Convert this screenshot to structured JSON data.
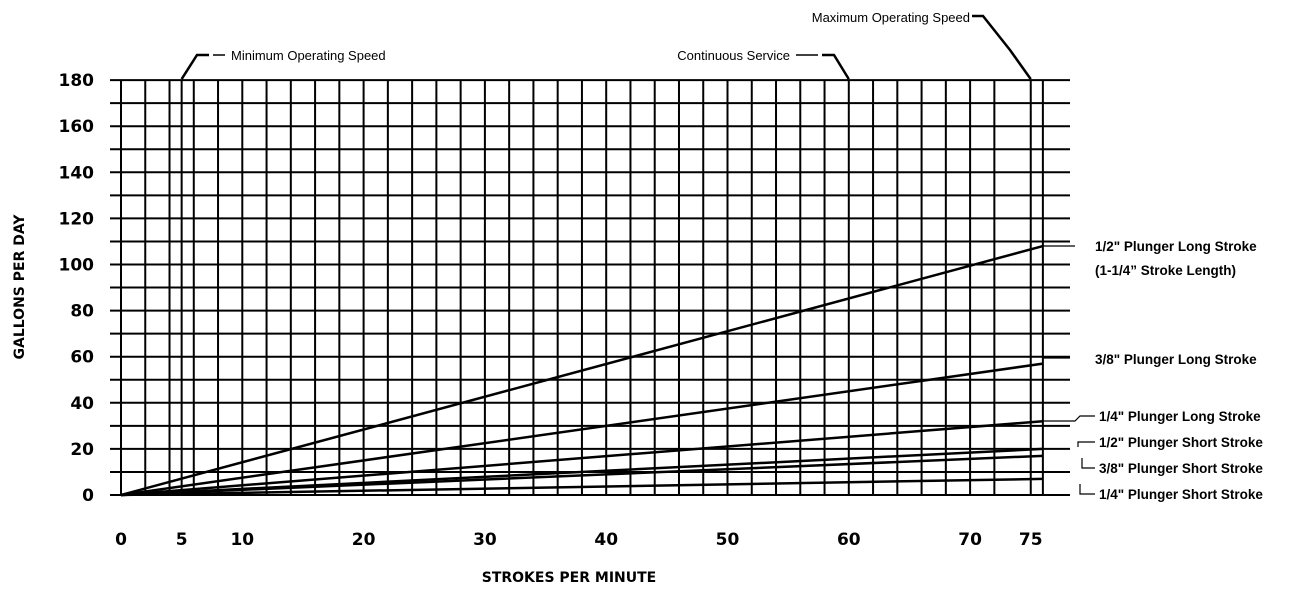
{
  "chart_data": {
    "type": "line",
    "title": "",
    "xlabel": "STROKES PER MINUTE",
    "ylabel": "GALLONS PER DAY",
    "xlim": [
      0,
      76
    ],
    "ylim": [
      0,
      180
    ],
    "x_ticks": [
      {
        "value": 0,
        "label": "0"
      },
      {
        "value": 5,
        "label": "5"
      },
      {
        "value": 10,
        "label": "10"
      },
      {
        "value": 20,
        "label": "20"
      },
      {
        "value": 30,
        "label": "30"
      },
      {
        "value": 40,
        "label": "40"
      },
      {
        "value": 50,
        "label": "50"
      },
      {
        "value": 60,
        "label": "60"
      },
      {
        "value": 70,
        "label": "70"
      },
      {
        "value": 75,
        "label": "75"
      }
    ],
    "y_ticks": [
      {
        "value": 0,
        "label": "0"
      },
      {
        "value": 20,
        "label": "20"
      },
      {
        "value": 40,
        "label": "40"
      },
      {
        "value": 60,
        "label": "60"
      },
      {
        "value": 80,
        "label": "80"
      },
      {
        "value": 100,
        "label": "100"
      },
      {
        "value": 120,
        "label": "120"
      },
      {
        "value": 140,
        "label": "140"
      },
      {
        "value": 160,
        "label": "160"
      },
      {
        "value": 180,
        "label": "180"
      }
    ],
    "grid": true,
    "grid_x_values": [
      0,
      2,
      4,
      5,
      6,
      8,
      10,
      12,
      14,
      16,
      18,
      20,
      22,
      24,
      26,
      28,
      30,
      32,
      34,
      36,
      38,
      40,
      42,
      44,
      46,
      48,
      50,
      52,
      54,
      56,
      58,
      60,
      62,
      64,
      66,
      68,
      70,
      72,
      75,
      76
    ],
    "grid_y_values": [
      0,
      10,
      20,
      30,
      40,
      50,
      60,
      70,
      80,
      90,
      100,
      110,
      120,
      130,
      140,
      150,
      160,
      170,
      180
    ],
    "series": [
      {
        "name": "1/2\" Plunger Long Stroke",
        "name_line2": "(1-1/4” Stroke Length)",
        "x": [
          0,
          76
        ],
        "y": [
          0,
          108
        ]
      },
      {
        "name": "3/8\" Plunger Long Stroke",
        "x": [
          0,
          76
        ],
        "y": [
          0,
          57
        ]
      },
      {
        "name": "1/4\" Plunger Long Stroke",
        "x": [
          0,
          76
        ],
        "y": [
          0,
          32
        ]
      },
      {
        "name": "1/2\" Plunger Short Stroke",
        "x": [
          0,
          76
        ],
        "y": [
          0,
          20
        ]
      },
      {
        "name": "3/8\" Plunger Short Stroke",
        "x": [
          0,
          76
        ],
        "y": [
          0,
          17
        ]
      },
      {
        "name": "1/4\" Plunger Short Stroke",
        "x": [
          0,
          76
        ],
        "y": [
          0,
          7
        ]
      }
    ],
    "annotations": [
      {
        "text": "Minimum Operating Speed",
        "x": 5
      },
      {
        "text": "Continuous Service",
        "x": 60
      },
      {
        "text": "Maximum Operating Speed",
        "x": 75
      }
    ]
  }
}
